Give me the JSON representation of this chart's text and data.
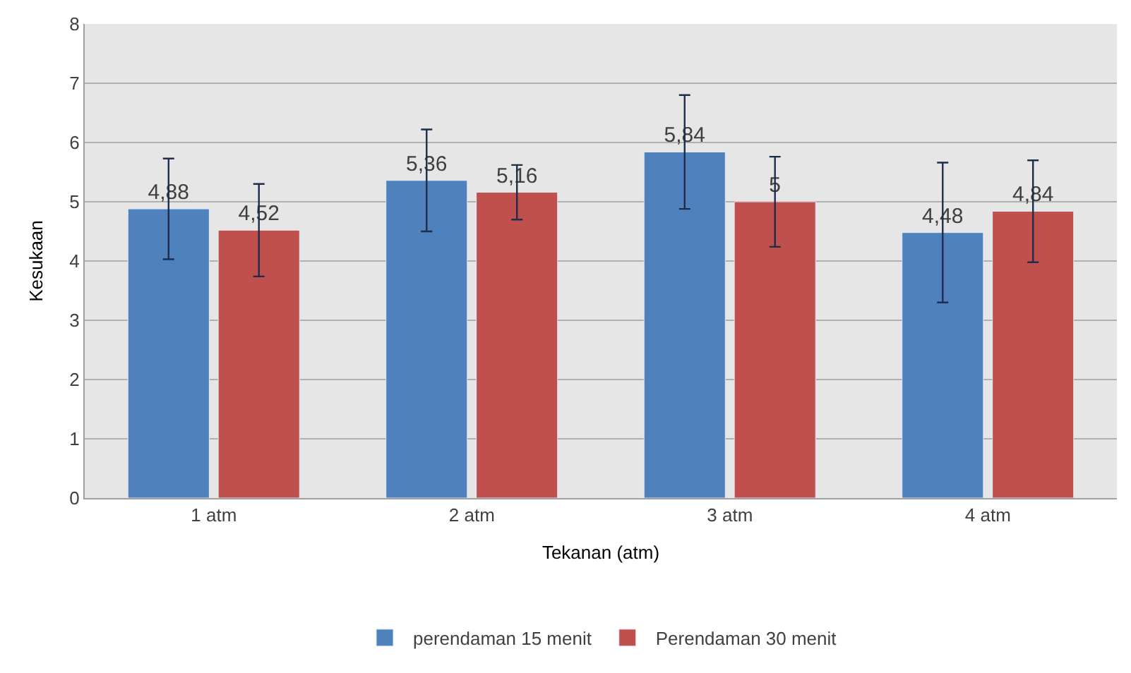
{
  "chart_data": {
    "type": "bar",
    "xlabel": "Tekanan (atm)",
    "ylabel": "Kesukaan",
    "categories": [
      "1 atm",
      "2 atm",
      "3 atm",
      "4 atm"
    ],
    "series": [
      {
        "name": "perendaman 15 menit",
        "color": "#4f81bd",
        "values": [
          4.88,
          5.36,
          5.84,
          4.48
        ],
        "value_labels": [
          "4,88",
          "5,36",
          "5,84",
          "4,48"
        ],
        "errors": [
          0.85,
          0.86,
          0.96,
          1.18
        ]
      },
      {
        "name": "Perendaman 30 menit",
        "color": "#c0504d",
        "values": [
          4.52,
          5.16,
          5,
          4.84
        ],
        "value_labels": [
          "4,52",
          "5,16",
          "5",
          "4,84"
        ],
        "errors": [
          0.78,
          0.46,
          0.76,
          0.86
        ]
      }
    ],
    "ylim": [
      0,
      8
    ],
    "yticks": [
      0,
      1,
      2,
      3,
      4,
      5,
      6,
      7,
      8
    ],
    "grid": "y",
    "legend": "bottom"
  }
}
